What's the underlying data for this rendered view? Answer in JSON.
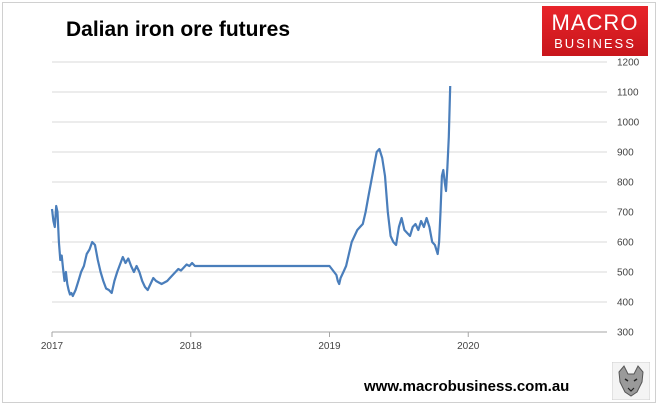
{
  "title": "Dalian iron ore futures",
  "logo": {
    "line1": "MACRO",
    "line2": "BUSINESS",
    "color": "#d91c22"
  },
  "website": "www.macrobusiness.com.au",
  "wolf_icon": "wolf-head-icon",
  "colors": {
    "line": "#4a7ebb",
    "grid": "#d9d9d9",
    "axis": "#a6a6a6"
  },
  "chart_data": {
    "type": "line",
    "title": "Dalian iron ore futures",
    "xlabel": "",
    "ylabel": "",
    "x_ticks": [
      "2017",
      "2018",
      "2019",
      "2020"
    ],
    "y_ticks": [
      300,
      400,
      500,
      600,
      700,
      800,
      900,
      1000,
      1100,
      1200
    ],
    "xlim": [
      2017.0,
      2021.0
    ],
    "ylim": [
      300,
      1200
    ],
    "y_axis_side": "right",
    "grid": "horizontal",
    "legend": "none",
    "series": [
      {
        "values_x": [
          2017.0,
          2017.01,
          2017.02,
          2017.03,
          2017.04,
          2017.05,
          2017.06,
          2017.07,
          2017.08,
          2017.09,
          2017.1,
          2017.11,
          2017.12,
          2017.13,
          2017.14,
          2017.15,
          2017.17,
          2017.19,
          2017.21,
          2017.23,
          2017.25,
          2017.27,
          2017.29,
          2017.31,
          2017.33,
          2017.35,
          2017.37,
          2017.39,
          2017.41,
          2017.43,
          2017.45,
          2017.47,
          2017.49,
          2017.51,
          2017.53,
          2017.55,
          2017.57,
          2017.59,
          2017.61,
          2017.63,
          2017.65,
          2017.67,
          2017.69,
          2017.71,
          2017.73,
          2017.75,
          2017.77,
          2017.79,
          2017.81,
          2017.83,
          2017.85,
          2017.87,
          2017.89,
          2017.91,
          2017.93,
          2017.95,
          2017.97,
          2017.99,
          2018.01,
          2018.03,
          2018.05,
          2018.1,
          2018.5,
          2019.0,
          2019.05,
          2019.06,
          2019.07,
          2019.08,
          2019.1,
          2019.12,
          2019.14,
          2019.16,
          2019.18,
          2019.2,
          2019.22,
          2019.24,
          2019.26,
          2019.28,
          2019.3,
          2019.32,
          2019.34,
          2019.36,
          2019.38,
          2019.4,
          2019.42,
          2019.44,
          2019.46,
          2019.48,
          2019.5,
          2019.52,
          2019.54,
          2019.56,
          2019.58,
          2019.6,
          2019.62,
          2019.64,
          2019.66,
          2019.68,
          2019.7,
          2019.72,
          2019.74,
          2019.76,
          2019.78,
          2019.79,
          2019.8,
          2019.81,
          2019.82,
          2019.83,
          2019.84,
          2019.85,
          2019.86,
          2019.87
        ],
        "values": [
          710,
          670,
          650,
          720,
          700,
          600,
          540,
          555,
          510,
          470,
          500,
          460,
          440,
          425,
          430,
          420,
          440,
          470,
          500,
          520,
          560,
          575,
          600,
          590,
          540,
          500,
          470,
          445,
          440,
          430,
          470,
          500,
          525,
          550,
          530,
          545,
          520,
          500,
          520,
          500,
          470,
          450,
          440,
          460,
          480,
          470,
          465,
          460,
          465,
          470,
          480,
          490,
          500,
          510,
          505,
          515,
          525,
          520,
          530,
          520,
          520,
          520,
          520,
          520,
          490,
          470,
          460,
          480,
          500,
          520,
          560,
          600,
          620,
          640,
          650,
          660,
          700,
          750,
          800,
          850,
          900,
          910,
          880,
          820,
          700,
          620,
          600,
          590,
          650,
          680,
          640,
          630,
          620,
          650,
          660,
          640,
          670,
          650,
          680,
          650,
          600,
          590,
          560,
          600,
          700,
          820,
          840,
          800,
          770,
          850,
          950,
          1120
        ]
      }
    ]
  }
}
